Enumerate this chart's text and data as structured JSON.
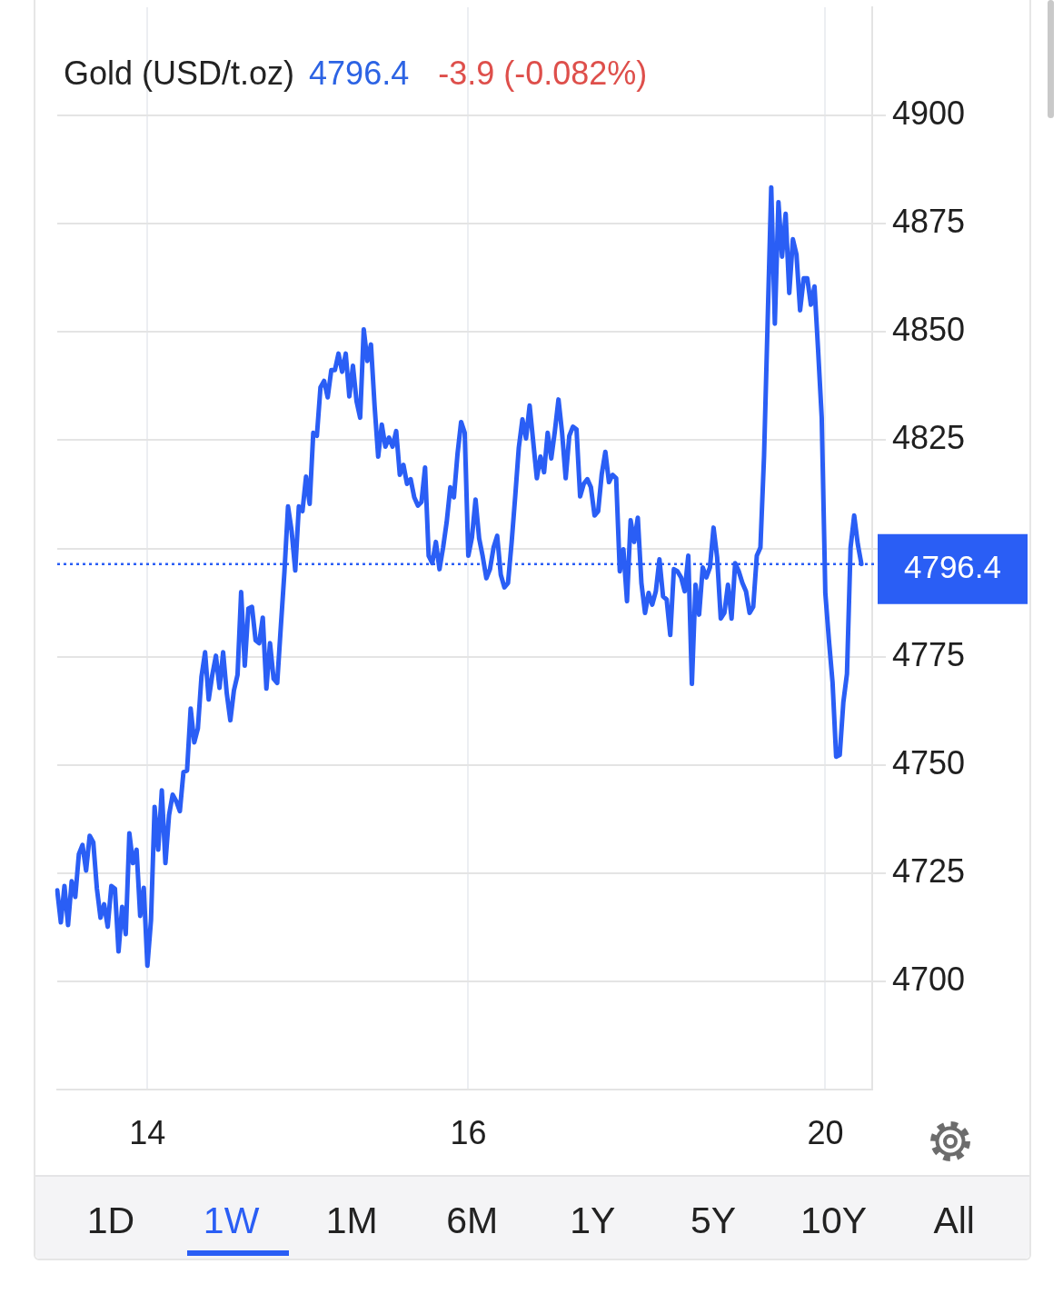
{
  "chart_data": {
    "type": "line",
    "title": "Gold (USD/t.oz)",
    "annotations": [
      "4796.4",
      "-3.9 (-0.082%)",
      "1D",
      "1W",
      "1M",
      "6M",
      "1Y",
      "5Y",
      "10Y",
      "All"
    ],
    "categories": [
      null,
      null,
      null,
      null,
      null,
      null,
      null,
      null,
      null,
      null,
      null,
      null,
      null,
      null,
      null,
      null,
      null,
      null,
      null,
      null,
      null,
      null,
      null,
      null,
      null,
      "14",
      null,
      null,
      null,
      null,
      null,
      null,
      null,
      null,
      null,
      null,
      null,
      null,
      null,
      null,
      null,
      null,
      null,
      null,
      null,
      null,
      null,
      null,
      null,
      null,
      null,
      null,
      null,
      null,
      null,
      null,
      null,
      null,
      null,
      null,
      null,
      null,
      null,
      null,
      null,
      null,
      null,
      null,
      null,
      null,
      null,
      null,
      null,
      null,
      null,
      null,
      null,
      null,
      null,
      null,
      null,
      null,
      null,
      null,
      null,
      null,
      null,
      null,
      null,
      null,
      null,
      null,
      null,
      null,
      null,
      null,
      null,
      null,
      null,
      null,
      null,
      null,
      null,
      null,
      null,
      null,
      null,
      null,
      null,
      null,
      null,
      null,
      null,
      null,
      "16",
      null,
      null,
      null,
      null,
      null,
      null,
      null,
      null,
      null,
      null,
      null,
      null,
      null,
      null,
      null,
      null,
      null,
      null,
      null,
      null,
      null,
      null,
      null,
      null,
      null,
      null,
      null,
      null,
      null,
      null,
      null,
      null,
      null,
      null,
      null,
      null,
      null,
      null,
      null,
      null,
      null,
      null,
      null,
      null,
      null,
      null,
      null,
      null,
      null,
      null,
      null,
      null,
      null,
      null,
      null,
      null,
      null,
      null,
      null,
      null,
      null,
      null,
      null,
      null,
      null,
      null,
      null,
      null,
      null,
      null,
      null,
      null,
      null,
      null,
      null,
      null,
      null,
      null,
      null,
      null,
      null,
      null,
      null,
      null,
      null,
      null,
      null,
      null,
      null,
      null,
      null,
      null,
      null,
      null,
      null,
      null,
      null,
      null,
      "20",
      null,
      null,
      null,
      null,
      null,
      null,
      null,
      null,
      null,
      null,
      null,
      null,
      null
    ],
    "series": [
      {
        "color": "#2a5ef5",
        "values": [
          4721.0,
          4713.6,
          4722.0,
          4713.0,
          4723.1,
          4719.5,
          4729.4,
          4731.5,
          4725.6,
          4733.6,
          4732.1,
          4721.4,
          4714.7,
          4717.8,
          4712.6,
          4722.0,
          4721.4,
          4706.9,
          4717.2,
          4710.9,
          4734.2,
          4727.3,
          4730.4,
          4715.1,
          4721.6,
          4703.6,
          4714.1,
          4740.3,
          4730.4,
          4744.1,
          4727.3,
          4738.4,
          4743.1,
          4741.6,
          4739.3,
          4748.3,
          4748.7,
          4763.0,
          4755.2,
          4758.4,
          4770.4,
          4776.0,
          4765.1,
          4770.8,
          4775.2,
          4767.8,
          4776.0,
          4766.6,
          4760.3,
          4767.2,
          4770.8,
          4789.9,
          4772.9,
          4786.1,
          4786.5,
          4778.8,
          4778.1,
          4784.0,
          4767.6,
          4778.1,
          4769.9,
          4768.9,
          4781.9,
          4794.5,
          4809.7,
          4804.0,
          4794.9,
          4809.7,
          4808.6,
          4816.6,
          4810.3,
          4826.7,
          4826.0,
          4837.2,
          4838.7,
          4834.9,
          4841.2,
          4841.2,
          4845.0,
          4840.8,
          4845.0,
          4835.1,
          4842.2,
          4834.0,
          4830.2,
          4850.6,
          4843.3,
          4847.1,
          4833.0,
          4821.2,
          4828.6,
          4823.5,
          4825.6,
          4823.5,
          4827.1,
          4817.0,
          4819.3,
          4814.9,
          4816.0,
          4811.8,
          4809.9,
          4810.7,
          4818.7,
          4798.3,
          4796.6,
          4801.5,
          4795.2,
          4800.2,
          4806.1,
          4814.1,
          4811.8,
          4821.8,
          4829.2,
          4826.7,
          4798.3,
          4802.5,
          4811.3,
          4802.3,
          4798.1,
          4793.1,
          4795.2,
          4800.2,
          4802.9,
          4793.9,
          4791.0,
          4792.0,
          4801.3,
          4812.0,
          4823.3,
          4829.8,
          4825.4,
          4833.0,
          4824.6,
          4816.2,
          4821.2,
          4817.6,
          4826.7,
          4820.8,
          4827.1,
          4834.4,
          4826.7,
          4816.2,
          4826.0,
          4828.1,
          4827.5,
          4812.0,
          4814.9,
          4816.0,
          4814.1,
          4807.6,
          4808.6,
          4817.2,
          4822.3,
          4815.3,
          4817.0,
          4816.2,
          4794.7,
          4799.8,
          4787.8,
          4806.5,
          4801.5,
          4807.1,
          4792.0,
          4785.1,
          4789.7,
          4787.0,
          4790.1,
          4797.5,
          4788.9,
          4788.2,
          4780.0,
          4795.2,
          4794.7,
          4793.3,
          4790.1,
          4798.3,
          4768.7,
          4791.6,
          4784.7,
          4795.6,
          4793.3,
          4795.6,
          4804.8,
          4797.9,
          4783.8,
          4785.1,
          4791.6,
          4783.8,
          4796.6,
          4794.7,
          4792.0,
          4790.1,
          4785.1,
          4786.5,
          4798.3,
          4800.2,
          4821.2,
          4852.3,
          4883.4,
          4851.9,
          4880.0,
          4867.4,
          4877.3,
          4859.0,
          4871.4,
          4867.9,
          4855.0,
          4862.4,
          4862.4,
          4856.3,
          4860.5,
          4845.8,
          4830.2,
          4789.7,
          4778.8,
          4769.1,
          4751.9,
          4752.3,
          4764.5,
          4771.0,
          4800.2,
          4807.6,
          4801.0,
          4796.4,
          null,
          null,
          null
        ]
      }
    ],
    "ylim": [
      4675,
      4925
    ],
    "yticks": [
      4700,
      4725,
      4750,
      4775,
      {
        "value": 4800,
        "label": null
      },
      4825,
      4850,
      4875,
      4900
    ],
    "ref_lines": [
      {
        "axis": "y",
        "value": 4796.4,
        "label": "4796.4",
        "color": "#2a5ef5",
        "line_style": "dotted"
      }
    ],
    "grid": true,
    "marker": "none",
    "line_style": "solid"
  }
}
